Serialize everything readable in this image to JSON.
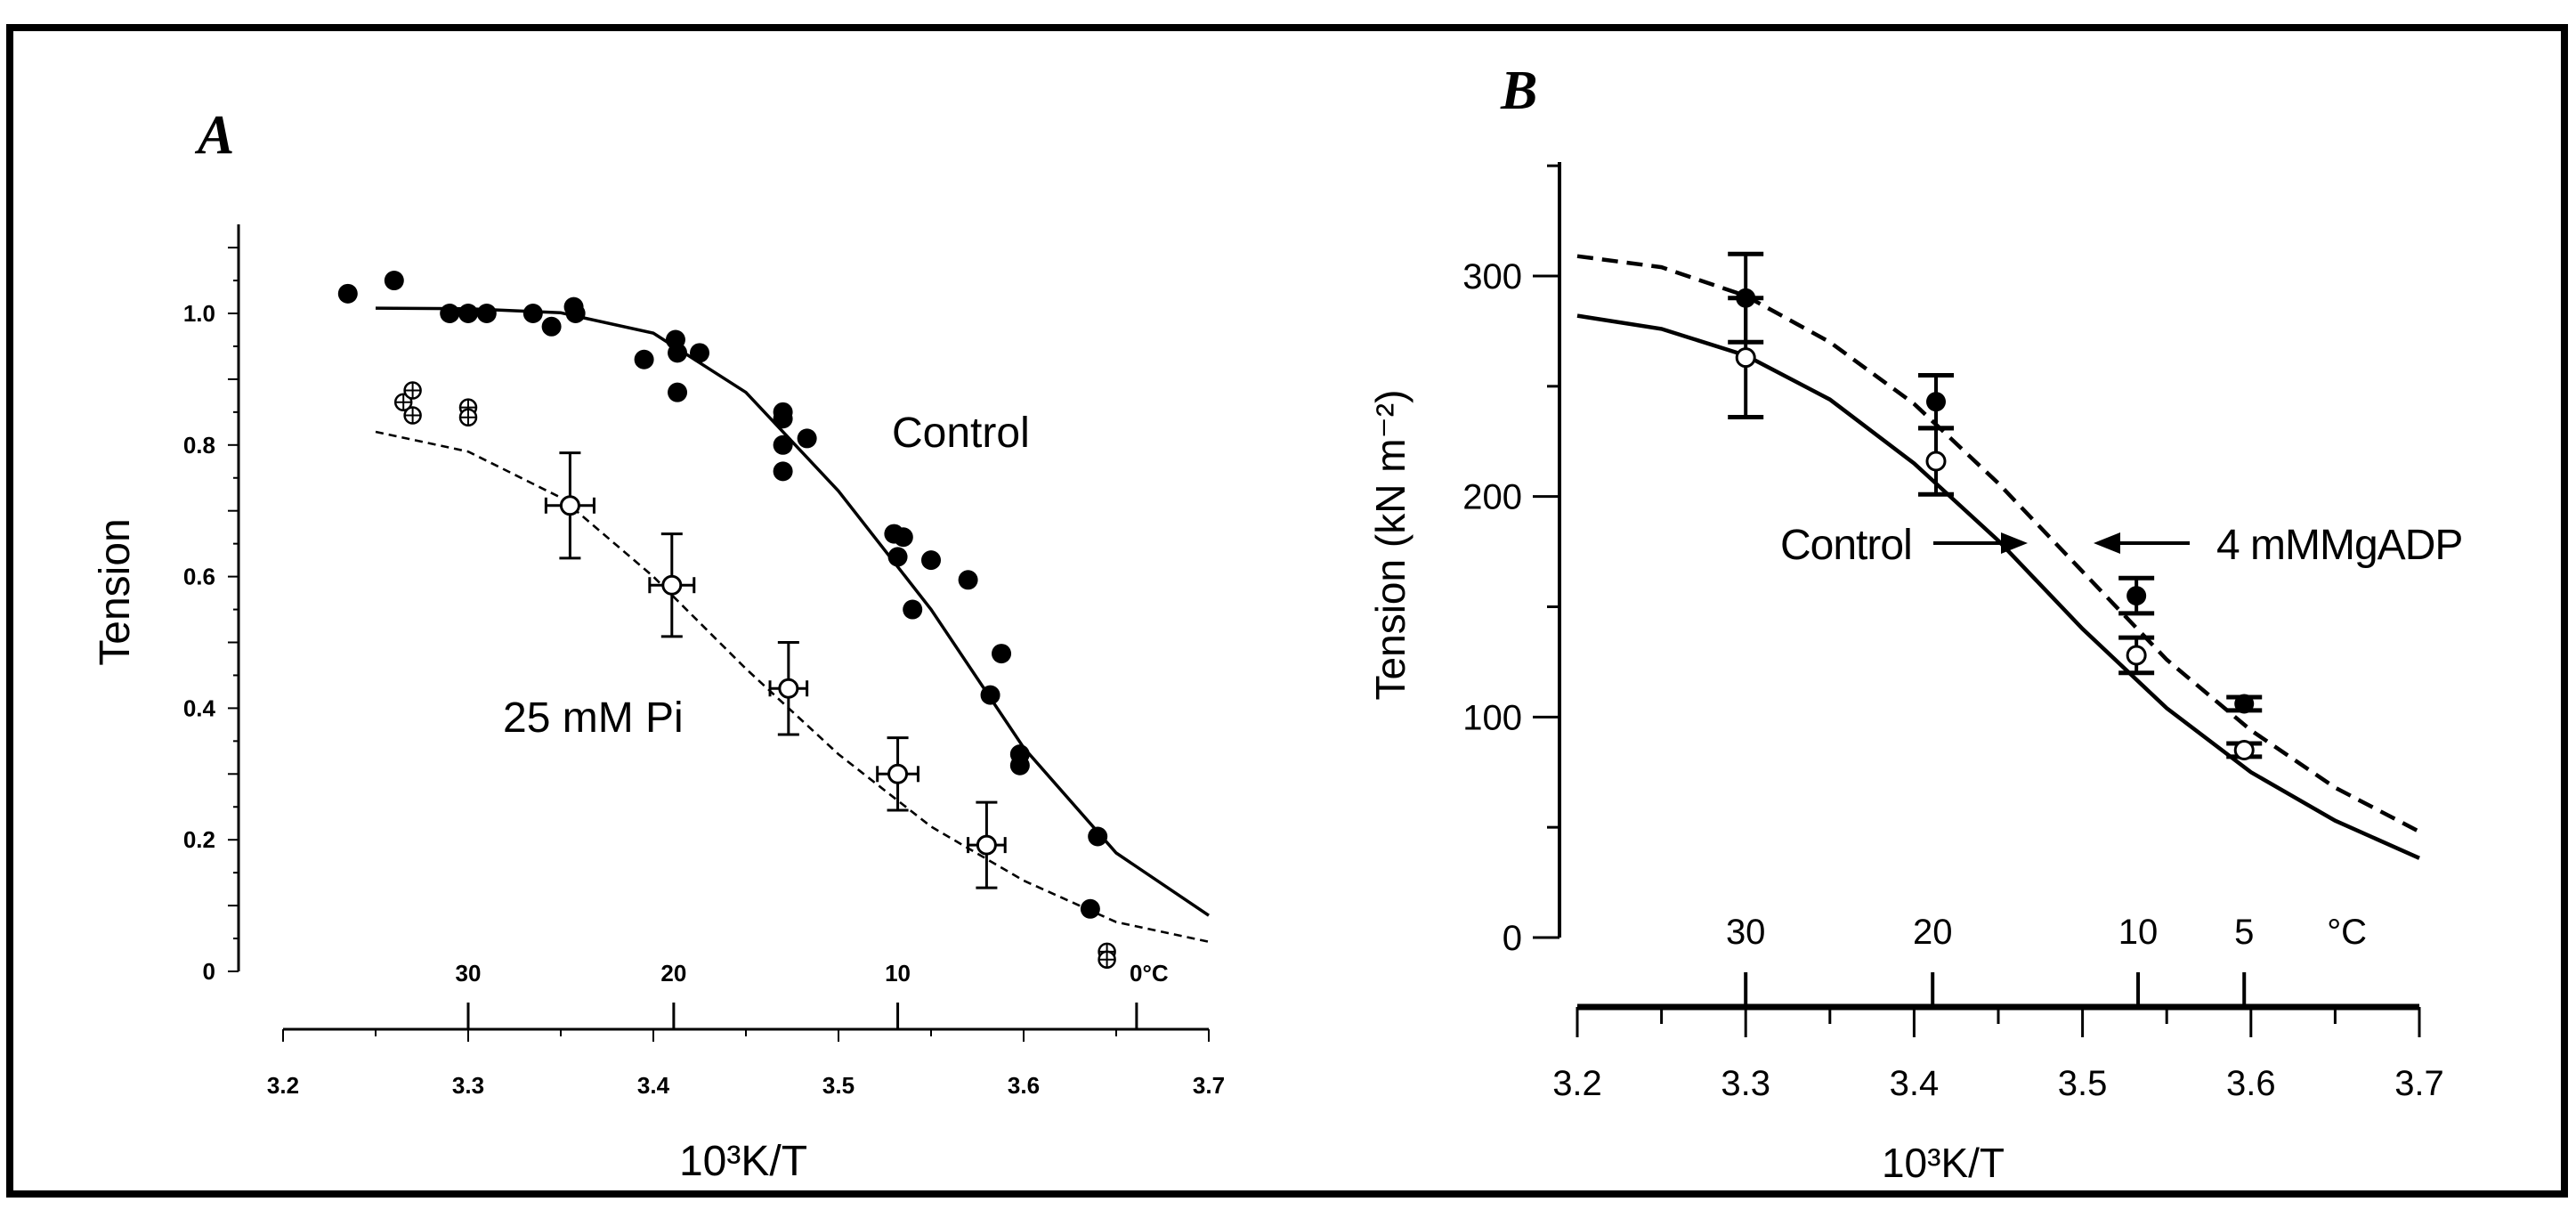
{
  "chart_data": [
    {
      "panel": "A",
      "type": "scatter",
      "xlabel": "10³K/T",
      "ylabel": "Tension",
      "xlim": [
        3.2,
        3.7
      ],
      "ylim": [
        0,
        1.1
      ],
      "x_ticks": [
        "3.2",
        "3.3",
        "3.4",
        "3.5",
        "3.6",
        "3.7"
      ],
      "x_tick_values": [
        3.2,
        3.3,
        3.4,
        3.5,
        3.6,
        3.7
      ],
      "y_ticks": [
        "0",
        "0.2",
        "0.4",
        "0.6",
        "0.8",
        "1.0"
      ],
      "y_tick_values": [
        0,
        0.2,
        0.4,
        0.6,
        0.8,
        1.0
      ],
      "temp_ticks": [
        {
          "label": "30",
          "x": 3.3
        },
        {
          "label": "20",
          "x": 3.411
        },
        {
          "label": "10",
          "x": 3.532
        },
        {
          "label": "0°C",
          "x": 3.661
        }
      ],
      "series": [
        {
          "name": "Control",
          "marker": "filled-circle",
          "points": [
            [
              3.235,
              1.03
            ],
            [
              3.26,
              1.05
            ],
            [
              3.29,
              1.0
            ],
            [
              3.3,
              1.0
            ],
            [
              3.31,
              1.0
            ],
            [
              3.335,
              1.0
            ],
            [
              3.345,
              0.98
            ],
            [
              3.357,
              1.01
            ],
            [
              3.358,
              1.0
            ],
            [
              3.395,
              0.93
            ],
            [
              3.412,
              0.96
            ],
            [
              3.413,
              0.94
            ],
            [
              3.413,
              0.88
            ],
            [
              3.425,
              0.94
            ],
            [
              3.47,
              0.85
            ],
            [
              3.47,
              0.84
            ],
            [
              3.47,
              0.8
            ],
            [
              3.47,
              0.76
            ],
            [
              3.483,
              0.81
            ],
            [
              3.53,
              0.665
            ],
            [
              3.535,
              0.66
            ],
            [
              3.532,
              0.63
            ],
            [
              3.54,
              0.55
            ],
            [
              3.55,
              0.625
            ],
            [
              3.57,
              0.595
            ],
            [
              3.582,
              0.42
            ],
            [
              3.588,
              0.483
            ],
            [
              3.598,
              0.33
            ],
            [
              3.598,
              0.313
            ],
            [
              3.64,
              0.205
            ],
            [
              3.636,
              0.095
            ]
          ]
        },
        {
          "name": "Control fit",
          "type": "line",
          "style": "solid",
          "points": [
            [
              3.25,
              1.008
            ],
            [
              3.3,
              1.007
            ],
            [
              3.35,
              1.001
            ],
            [
              3.4,
              0.97
            ],
            [
              3.45,
              0.88
            ],
            [
              3.5,
              0.73
            ],
            [
              3.55,
              0.55
            ],
            [
              3.6,
              0.34
            ],
            [
              3.65,
              0.18
            ],
            [
              3.7,
              0.085
            ]
          ]
        },
        {
          "name": "25 mM Pi",
          "marker": "open-circle-errorbars",
          "points": [
            {
              "x": 3.355,
              "y": 0.708,
              "yerr": 0.08,
              "xerr": 0.013
            },
            {
              "x": 3.41,
              "y": 0.587,
              "yerr": 0.078,
              "xerr": 0.012
            },
            {
              "x": 3.473,
              "y": 0.43,
              "yerr": 0.07,
              "xerr": 0.01
            },
            {
              "x": 3.532,
              "y": 0.3,
              "yerr": 0.055,
              "xerr": 0.011
            },
            {
              "x": 3.58,
              "y": 0.192,
              "yerr": 0.065,
              "xerr": 0.01
            }
          ]
        },
        {
          "name": "25 mM Pi fit",
          "type": "line",
          "style": "dashed",
          "points": [
            [
              3.25,
              0.82
            ],
            [
              3.3,
              0.79
            ],
            [
              3.35,
              0.72
            ],
            [
              3.4,
              0.6
            ],
            [
              3.45,
              0.46
            ],
            [
              3.5,
              0.33
            ],
            [
              3.55,
              0.22
            ],
            [
              3.6,
              0.138
            ],
            [
              3.65,
              0.075
            ],
            [
              3.7,
              0.045
            ]
          ]
        },
        {
          "name": "crossed circles",
          "marker": "crossed-circle",
          "points": [
            [
              3.265,
              0.865
            ],
            [
              3.27,
              0.883
            ],
            [
              3.27,
              0.845
            ],
            [
              3.3,
              0.857
            ],
            [
              3.3,
              0.842
            ],
            [
              3.645,
              0.03
            ],
            [
              3.645,
              0.018
            ]
          ]
        }
      ],
      "annotations": [
        {
          "text": "Control",
          "x": 3.56,
          "y": 0.82
        },
        {
          "text": "25 mM Pi",
          "x": 3.36,
          "y": 0.38
        }
      ]
    },
    {
      "panel": "B",
      "type": "scatter",
      "xlabel": "10³K/T",
      "ylabel": "Tension (kN m⁻²)",
      "xlim": [
        3.2,
        3.7
      ],
      "ylim": [
        0,
        350
      ],
      "x_ticks": [
        "3.2",
        "3.3",
        "3.4",
        "3.5",
        "3.6",
        "3.7"
      ],
      "x_tick_values": [
        3.2,
        3.3,
        3.4,
        3.5,
        3.6,
        3.7
      ],
      "y_ticks": [
        "0",
        "100",
        "200",
        "300"
      ],
      "y_tick_values": [
        0,
        100,
        200,
        300
      ],
      "temp_ticks": [
        {
          "label": "30",
          "x": 3.3
        },
        {
          "label": "20",
          "x": 3.411
        },
        {
          "label": "10",
          "x": 3.533
        },
        {
          "label": "5",
          "x": 3.596
        },
        {
          "label": "°C",
          "x": 3.657
        }
      ],
      "series": [
        {
          "name": "Control",
          "marker": "open-circle",
          "points": [
            {
              "x": 3.3,
              "y": 263,
              "yerr": 27
            },
            {
              "x": 3.413,
              "y": 216,
              "yerr": 15
            },
            {
              "x": 3.532,
              "y": 128,
              "yerr": 8
            },
            {
              "x": 3.596,
              "y": 85,
              "yerr": 3
            }
          ]
        },
        {
          "name": "4 mM MgADP",
          "marker": "filled-circle",
          "points": [
            {
              "x": 3.3,
              "y": 290,
              "yerr": 20
            },
            {
              "x": 3.413,
              "y": 243,
              "yerr": 12
            },
            {
              "x": 3.532,
              "y": 155,
              "yerr": 8
            },
            {
              "x": 3.596,
              "y": 106,
              "yerr": 3
            }
          ]
        },
        {
          "name": "Control fit",
          "type": "line",
          "style": "solid",
          "points": [
            [
              3.2,
              282
            ],
            [
              3.25,
              276
            ],
            [
              3.3,
              264
            ],
            [
              3.35,
              244
            ],
            [
              3.4,
              215
            ],
            [
              3.45,
              180
            ],
            [
              3.5,
              140
            ],
            [
              3.55,
              104
            ],
            [
              3.6,
              75
            ],
            [
              3.65,
              53
            ],
            [
              3.7,
              36
            ]
          ]
        },
        {
          "name": "MgADP fit",
          "type": "line",
          "style": "dashed",
          "points": [
            [
              3.2,
              309
            ],
            [
              3.25,
              304
            ],
            [
              3.3,
              291
            ],
            [
              3.35,
              270
            ],
            [
              3.4,
              242
            ],
            [
              3.45,
              206
            ],
            [
              3.5,
              166
            ],
            [
              3.55,
              126
            ],
            [
              3.6,
              94
            ],
            [
              3.65,
              68
            ],
            [
              3.7,
              48
            ]
          ]
        }
      ],
      "annotations": [
        {
          "text": "Control",
          "arrow_to": "Control fit"
        },
        {
          "text": "4 mMMgADP",
          "arrow_to": "MgADP fit"
        }
      ]
    }
  ]
}
